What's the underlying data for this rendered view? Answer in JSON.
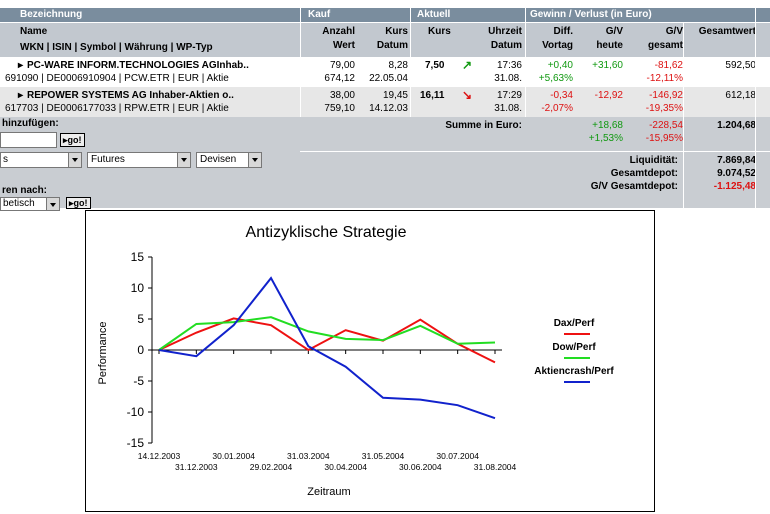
{
  "headers": {
    "bezeichnung": "Bezeichnung",
    "kauf": "Kauf",
    "aktuell": "Aktuell",
    "gewinn": "Gewinn / Verlust  (in Euro)",
    "name": "Name",
    "wkn": "WKN | ISIN | Symbol | Währung | WP-Typ",
    "anzahl": "Anzahl",
    "wert": "Wert",
    "kurs_k": "Kurs",
    "datum_k": "Datum",
    "kurs_a": "Kurs",
    "uhrzeit": "Uhrzeit",
    "datum_a": "Datum",
    "diff": "Diff.",
    "vortag": "Vortag",
    "gv1": "G/V",
    "heute": "heute",
    "gv2": "G/V",
    "gesamt": "gesamt",
    "gesamtwert": "Gesamtwert"
  },
  "rows": [
    {
      "name": "PC-WARE INFORM.TECHNOLOGIES AGInhab..",
      "ids": "691090 | DE0006910904 | PCW.ETR | EUR | Aktie",
      "anzahl": "79,00",
      "wert": "674,12",
      "kurs_kauf": "8,28",
      "datum_kauf": "22.05.04",
      "kurs": "7,50",
      "trend": "up",
      "uhrzeit": "17:36",
      "datum": "31.08.",
      "diff": "+0,40",
      "diff_pct": "+5,63%",
      "gv_heute": "+31,60",
      "gv_gesamt": "-81,62",
      "gv_gesamt_pct": "-12,11%",
      "gesamtwert": "592,50"
    },
    {
      "name": "REPOWER SYSTEMS AG Inhaber-Aktien o..",
      "ids": "617703 | DE0006177033 | RPW.ETR | EUR | Aktie",
      "anzahl": "38,00",
      "wert": "759,10",
      "kurs_kauf": "19,45",
      "datum_kauf": "14.12.03",
      "kurs": "16,11",
      "trend": "down",
      "uhrzeit": "17:29",
      "datum": "31.08.",
      "diff": "-0,34",
      "diff_pct": "-2,07%",
      "gv_heute": "-12,92",
      "gv_gesamt": "-146,92",
      "gv_gesamt_pct": "-19,35%",
      "gesamtwert": "612,18"
    }
  ],
  "summary": {
    "label": "Summe in Euro:",
    "gv_heute": "+18,68",
    "gv_heute_pct": "+1,53%",
    "gv_gesamt": "-228,54",
    "gv_gesamt_pct": "-15,95%",
    "gesamtwert": "1.204,68",
    "liquiditaet_label": "Liquidität:",
    "liquiditaet": "7.869,84",
    "gesamtdepot_label": "Gesamtdepot:",
    "gesamtdepot": "9.074,52",
    "gv_depot_label": "G/V Gesamtdepot:",
    "gv_depot": "-1.125,48"
  },
  "controls": {
    "add_label": "hinzufügen:",
    "go1": "go!",
    "select1": "s",
    "select2": "Futures",
    "select3": "Devisen",
    "sort_label": "ren nach:",
    "sort_select": "betisch",
    "go2": "go!"
  },
  "colors": {
    "dax": "#ee1111",
    "dow": "#22dd22",
    "crash": "#1122cc",
    "pos": "#119911",
    "neg": "#dd1111"
  },
  "chart_data": {
    "type": "line",
    "title": "Antizyklische Strategie",
    "xlabel": "Zeitraum",
    "ylabel": "Performance",
    "ylim": [
      -15,
      15
    ],
    "yticks": [
      15,
      10,
      5,
      0,
      -5,
      -10,
      -15
    ],
    "x": [
      "14.12.2003",
      "31.12.2003",
      "30.01.2004",
      "29.02.2004",
      "31.03.2004",
      "30.04.2004",
      "31.05.2004",
      "30.06.2004",
      "30.07.2004",
      "31.08.2004"
    ],
    "legend_position": "right",
    "grid": false,
    "series": [
      {
        "name": "Dax/Perf",
        "color": "#ee1111",
        "values": [
          0,
          2.8,
          5.1,
          4.0,
          0.0,
          3.2,
          1.5,
          4.9,
          1.0,
          -2.0
        ]
      },
      {
        "name": "Dow/Perf",
        "color": "#22dd22",
        "values": [
          0,
          4.2,
          4.5,
          5.3,
          3.0,
          1.8,
          1.6,
          3.9,
          1.0,
          1.2
        ]
      },
      {
        "name": "Aktiencrash/Perf",
        "color": "#1122cc",
        "values": [
          0,
          -1.0,
          4.0,
          11.6,
          0.6,
          -2.7,
          -7.7,
          -8.0,
          -8.9,
          -11.0
        ]
      }
    ]
  }
}
